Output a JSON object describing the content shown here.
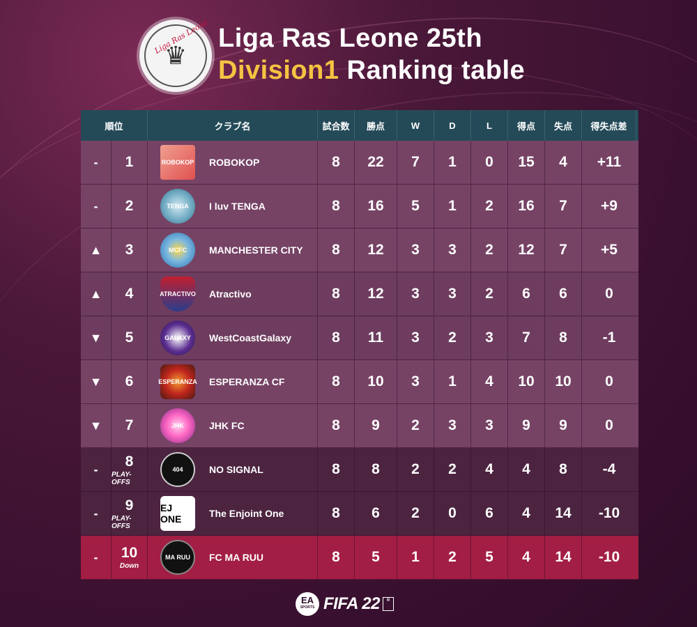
{
  "header": {
    "logo_text": "Liga Ras Leone",
    "title_line1": "Liga Ras Leone 25th",
    "title_division": "Division1",
    "title_rest": "Ranking table"
  },
  "table": {
    "columns": [
      "順位",
      "クラブ名",
      "試合数",
      "勝点",
      "W",
      "D",
      "L",
      "得点",
      "失点",
      "得失点差"
    ],
    "rows": [
      {
        "move": "-",
        "rank": "1",
        "note": "",
        "club": "ROBOKOP",
        "badge": "ROBOKOP",
        "played": "8",
        "points": "22",
        "w": "7",
        "d": "1",
        "l": "0",
        "gf": "15",
        "ga": "4",
        "gd": "+11"
      },
      {
        "move": "-",
        "rank": "2",
        "note": "",
        "club": "I luv TENGA",
        "badge": "TENGA",
        "played": "8",
        "points": "16",
        "w": "5",
        "d": "1",
        "l": "2",
        "gf": "16",
        "ga": "7",
        "gd": "+9"
      },
      {
        "move": "▲",
        "rank": "3",
        "note": "",
        "club": "MANCHESTER CITY",
        "badge": "MCFC",
        "played": "8",
        "points": "12",
        "w": "3",
        "d": "3",
        "l": "2",
        "gf": "12",
        "ga": "7",
        "gd": "+5"
      },
      {
        "move": "▲",
        "rank": "4",
        "note": "",
        "club": "Atractivo",
        "badge": "ATRACTIVO",
        "played": "8",
        "points": "12",
        "w": "3",
        "d": "3",
        "l": "2",
        "gf": "6",
        "ga": "6",
        "gd": "0"
      },
      {
        "move": "▼",
        "rank": "5",
        "note": "",
        "club": "WestCoastGalaxy",
        "badge": "GALAXY",
        "played": "8",
        "points": "11",
        "w": "3",
        "d": "2",
        "l": "3",
        "gf": "7",
        "ga": "8",
        "gd": "-1"
      },
      {
        "move": "▼",
        "rank": "6",
        "note": "",
        "club": "ESPERANZA CF",
        "badge": "ESPERANZA",
        "played": "8",
        "points": "10",
        "w": "3",
        "d": "1",
        "l": "4",
        "gf": "10",
        "ga": "10",
        "gd": "0"
      },
      {
        "move": "▼",
        "rank": "7",
        "note": "",
        "club": "JHK FC",
        "badge": "JHK",
        "played": "8",
        "points": "9",
        "w": "2",
        "d": "3",
        "l": "3",
        "gf": "9",
        "ga": "9",
        "gd": "0"
      },
      {
        "move": "-",
        "rank": "8",
        "note": "PLAY-OFFS",
        "club": "NO SIGNAL",
        "badge": "404",
        "played": "8",
        "points": "8",
        "w": "2",
        "d": "2",
        "l": "4",
        "gf": "4",
        "ga": "8",
        "gd": "-4"
      },
      {
        "move": "-",
        "rank": "9",
        "note": "PLAY-OFFS",
        "club": "The Enjoint One",
        "badge": "EJ ONE",
        "played": "8",
        "points": "6",
        "w": "2",
        "d": "0",
        "l": "6",
        "gf": "4",
        "ga": "14",
        "gd": "-10"
      },
      {
        "move": "-",
        "rank": "10",
        "note": "Down",
        "club": "FC MA RUU",
        "badge": "MA RUU",
        "played": "8",
        "points": "5",
        "w": "1",
        "d": "2",
        "l": "5",
        "gf": "4",
        "ga": "14",
        "gd": "-10"
      }
    ]
  },
  "footer": {
    "ea_label": "EA",
    "ea_sub": "SPORTS",
    "fifa_label": "FIFA 22"
  },
  "colors": {
    "header_row": "#244a58",
    "division_accent": "#f5c342",
    "row_light": "#764365",
    "row_dark": "#4c2440",
    "row_relegation": "#a31e44"
  }
}
